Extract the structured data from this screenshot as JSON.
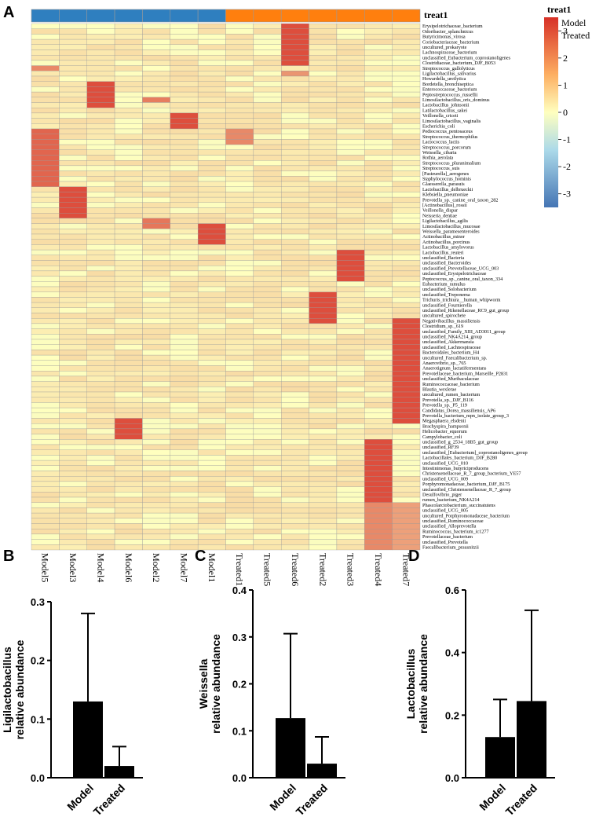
{
  "panels": {
    "A": "A",
    "B": "B",
    "C": "C",
    "D": "D"
  },
  "colors": {
    "model": "#2f7fbf",
    "treated": "#ff7f0e",
    "low": "#4575b4",
    "mid": "#ffffbf",
    "high": "#d73027",
    "bar": "#000000"
  },
  "chart_data": [
    {
      "type": "heatmap",
      "title": "",
      "annotation_title": "treat1",
      "annotation_legend": [
        "Model",
        "Treated"
      ],
      "color_scale_ticks": [
        "3",
        "2",
        "1",
        "0",
        "-1",
        "-2",
        "-3"
      ],
      "color_range": [
        -3.5,
        3.5
      ],
      "columns": [
        "Model5",
        "Model3",
        "Model4",
        "Model6",
        "Model2",
        "Model7",
        "Model1",
        "Treated1",
        "Treated5",
        "Treated6",
        "Treated2",
        "Treated3",
        "Treated4",
        "Treated7"
      ],
      "column_groups": [
        "Model",
        "Model",
        "Model",
        "Model",
        "Model",
        "Model",
        "Model",
        "Treated",
        "Treated",
        "Treated",
        "Treated",
        "Treated",
        "Treated",
        "Treated"
      ],
      "rows": [
        "Erysipelotrichaceae_bacterium",
        "Odoribacter_splanchnicus",
        "Butyricimonas_virosa",
        "Coriobacteriaceae_bacterium",
        "uncultured_prokaryote",
        "Lachnospiraceae_bacterium",
        "unclassified_Eubacterium_coprostanoligenes",
        "Clostridiaceae_bacterium_DJF_B053",
        "Streptococcus_gallolyticus",
        "Ligilactobacillus_salivarius",
        "Howardella_ureilytica",
        "Bordetella_bronchiseptica",
        "Enterococcaceae_bacterium",
        "Peptostreptococcus_russellii",
        "Limosilactobacillus_oris_dominus",
        "Lactobacillus_johnsonii",
        "Latilactobacillus_sakei",
        "Veillonella_criceti",
        "Limosilactobacillus_vaginalis",
        "Escherichia_coli",
        "Pediococcus_pentosaceus",
        "Streptococcus_thermophilus",
        "Lactococcus_lactis",
        "Streptococcus_porcorum",
        "Weissella_cibaria",
        "Rothia_aerolata",
        "Streptococcus_pluranimalium",
        "Streptococcus_suis",
        "[Pasteurella]_aerogenes",
        "Staphylococcus_hominis",
        "Glaesserella_parasuis",
        "Lactobacillus_delbrueckii",
        "Klebsiella_pneumoniae",
        "Prevotella_sp._canine_oral_taxon_282",
        "[Actinobacillus]_rossii",
        "Veillonella_dispar",
        "Neisseria_dentiae",
        "Ligilactobacillus_agilis",
        "Limosilactobacillus_mucosae",
        "Weissella_paramesenteroides",
        "Actinobacillus_minor",
        "Actinobacillus_porcinus",
        "Lactobacillus_amylovorus",
        "Lactobacillus_reuteri",
        "unclassified_Bacteria",
        "unclassified_Bacteroides",
        "unclassified_Prevotellaceae_UCG_003",
        "unclassified_Erysipelotrichaceae",
        "Peptococcus_sp._canine_oral_taxon_334",
        "Eubacterium_ramulus",
        "unclassified_Solobacterium",
        "unclassified_Treponema",
        "Trichuris_trichiura__human_whipworm",
        "unclassified_Fournierella",
        "unclassified_Rikenellaceae_RC9_gut_group",
        "uncultured_spirochete",
        "Negativibacillus_massiliensis",
        "Clostridium_sp._619",
        "unclassified_Family_XIII_AD3011_group",
        "unclassified_NK4A214_group",
        "unclassified_Akkermansia",
        "unclassified_Lachnospiraceae",
        "Bacteroidales_bacterium_H4",
        "uncultured_Faecalibacterium_sp.",
        "Anaerovibrio_sp._765",
        "Anaerotignum_lactatifermentans",
        "Prevotellaceae_bacterium_Marseille_P2831",
        "unclassified_Muribaculaceae",
        "Ruminococcaceae_bacterium",
        "Blautia_wexlerae",
        "uncultured_rumen_bacterium",
        "Prevotella_sp._DJF_B116",
        "Prevotella_sp._P5_119",
        "Candidatus_Dorea_massiliensis_AP6",
        "Prevotella_bacterium_mpn_isolate_group_3",
        "Megasphaera_elsdenii",
        "Brachyspira_hampsonii",
        "Helicobacter_equorum",
        "Campylobacter_coli",
        "unclassified_g_2534_18B5_gut_group",
        "unclassified_RF39",
        "unclassified_[Eubacterium]_coprostanoligenes_group",
        "Lactobacillales_bacterium_DJF_B280",
        "unclassified_UCG_010",
        "Intestinimonas_butyriciproducens",
        "Christensenellaceae_R_7_group_bacterium_YE57",
        "unclassified_UCG_009",
        "Porphyromonadaceae_bacterium_DJF_B175",
        "unclassified_Christensenellaceae_R_7_group",
        "Desulfovibrio_piger",
        "rumen_bacterium_NK4A214",
        "Phascolarctobacterium_succinatutens",
        "unclassified_UCG_005",
        "uncultured_Porphyromonadaceae_bacterium",
        "unclassified_Ruminococcaceae",
        "unclassified_Alloprevotella",
        "Ruminococcus_bacterium_ic1277",
        "Prevotellaceae_bacterium",
        "unclassified_Prevotella",
        "Faecalibacterium_prausnitzii"
      ],
      "hot_cells": [
        {
          "rows": [
            0,
            7
          ],
          "column": "Treated6",
          "z": 3.0
        },
        {
          "rows": [
            8,
            8
          ],
          "column": "Model5",
          "z": 2.0
        },
        {
          "rows": [
            9,
            9
          ],
          "column": "Treated6",
          "z": 1.8
        },
        {
          "rows": [
            11,
            15
          ],
          "column": "Model4",
          "z": 3.0
        },
        {
          "rows": [
            14,
            14
          ],
          "column": "Model2",
          "z": 2.2
        },
        {
          "rows": [
            17,
            19
          ],
          "column": "Model7",
          "z": 3.0
        },
        {
          "rows": [
            20,
            22
          ],
          "column": "Treated1",
          "z": 2.0
        },
        {
          "rows": [
            20,
            30
          ],
          "column": "Model5",
          "z": 2.6
        },
        {
          "rows": [
            31,
            36
          ],
          "column": "Model3",
          "z": 3.0
        },
        {
          "rows": [
            37,
            38
          ],
          "column": "Model2",
          "z": 2.3
        },
        {
          "rows": [
            38,
            41
          ],
          "column": "Model1",
          "z": 3.0
        },
        {
          "rows": [
            43,
            48
          ],
          "column": "Treated3",
          "z": 3.0
        },
        {
          "rows": [
            51,
            56
          ],
          "column": "Treated2",
          "z": 3.0
        },
        {
          "rows": [
            56,
            75
          ],
          "column": "Treated7",
          "z": 3.0
        },
        {
          "rows": [
            75,
            78
          ],
          "column": "Model6",
          "z": 3.0
        },
        {
          "rows": [
            79,
            90
          ],
          "column": "Treated4",
          "z": 3.0
        },
        {
          "rows": [
            91,
            99
          ],
          "column": "Treated4",
          "z": 2.0
        },
        {
          "rows": [
            91,
            99
          ],
          "column": "Treated7",
          "z": 1.6
        }
      ]
    },
    {
      "type": "bar",
      "title": "",
      "categories": [
        "Model",
        "Treated"
      ],
      "values": [
        0.13,
        0.02
      ],
      "errors": [
        0.15,
        0.033
      ],
      "xlabel": "",
      "ylabel": "Ligilactobacillus relative abundance",
      "ylabel_lines": [
        "Ligilactobacillus",
        "relative abundance"
      ],
      "ylim": [
        0,
        0.3
      ],
      "yticks": [
        "0.0",
        "0.1",
        "0.2",
        "0.3"
      ]
    },
    {
      "type": "bar",
      "title": "",
      "categories": [
        "Model",
        "Treated"
      ],
      "values": [
        0.127,
        0.03
      ],
      "errors": [
        0.18,
        0.057
      ],
      "xlabel": "",
      "ylabel": "Weissella relative abundance",
      "ylabel_lines": [
        "Weissella",
        "relative abundance"
      ],
      "ylim": [
        0,
        0.4
      ],
      "yticks": [
        "0.0",
        "0.1",
        "0.2",
        "0.3",
        "0.4"
      ]
    },
    {
      "type": "bar",
      "title": "",
      "categories": [
        "Model",
        "Treated"
      ],
      "values": [
        0.13,
        0.245
      ],
      "errors": [
        0.12,
        0.29
      ],
      "xlabel": "",
      "ylabel": "Lactobacillus relative abundance",
      "ylabel_lines": [
        "Lactobacillus",
        "relative abundance"
      ],
      "ylim": [
        0,
        0.6
      ],
      "yticks": [
        "0.0",
        "0.2",
        "0.4",
        "0.6"
      ]
    }
  ]
}
